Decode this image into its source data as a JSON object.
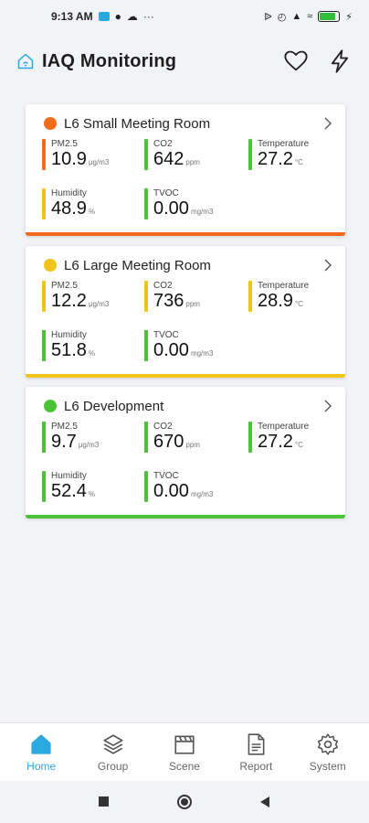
{
  "statusbar": {
    "time": "9:13 AM",
    "dots": "···"
  },
  "header": {
    "title": "IAQ Monitoring"
  },
  "rooms": [
    {
      "name": "L6 Small Meeting Room",
      "status_color": "#f26b1d",
      "metrics": [
        {
          "label": "PM2.5",
          "value": "10.9",
          "unit": "μg/m3",
          "color": "#f26b1d"
        },
        {
          "label": "CO2",
          "value": "642",
          "unit": "ppm",
          "color": "#4cc43a"
        },
        {
          "label": "Temperature",
          "value": "27.2",
          "unit": "°C",
          "color": "#4cc43a"
        },
        {
          "label": "Humidity",
          "value": "48.9",
          "unit": "%",
          "color": "#f0c419"
        },
        {
          "label": "TVOC",
          "value": "0.00",
          "unit": "mg/m3",
          "color": "#4cc43a"
        }
      ]
    },
    {
      "name": "L6 Large Meeting Room",
      "status_color": "#f0c419",
      "metrics": [
        {
          "label": "PM2.5",
          "value": "12.2",
          "unit": "μg/m3",
          "color": "#f0c419"
        },
        {
          "label": "CO2",
          "value": "736",
          "unit": "ppm",
          "color": "#f0c419"
        },
        {
          "label": "Temperature",
          "value": "28.9",
          "unit": "°C",
          "color": "#f0c419"
        },
        {
          "label": "Humidity",
          "value": "51.8",
          "unit": "%",
          "color": "#4cc43a"
        },
        {
          "label": "TVOC",
          "value": "0.00",
          "unit": "mg/m3",
          "color": "#4cc43a"
        }
      ]
    },
    {
      "name": "L6 Development",
      "status_color": "#4cc43a",
      "metrics": [
        {
          "label": "PM2.5",
          "value": "9.7",
          "unit": "μg/m3",
          "color": "#4cc43a"
        },
        {
          "label": "CO2",
          "value": "670",
          "unit": "ppm",
          "color": "#4cc43a"
        },
        {
          "label": "Temperature",
          "value": "27.2",
          "unit": "°C",
          "color": "#4cc43a"
        },
        {
          "label": "Humidity",
          "value": "52.4",
          "unit": "%",
          "color": "#4cc43a"
        },
        {
          "label": "TVOC",
          "value": "0.00",
          "unit": "mg/m3",
          "color": "#4cc43a"
        }
      ]
    }
  ],
  "nav": [
    {
      "label": "Home",
      "icon": "home-icon",
      "active": true
    },
    {
      "label": "Group",
      "icon": "layers-icon",
      "active": false
    },
    {
      "label": "Scene",
      "icon": "clapperboard-icon",
      "active": false
    },
    {
      "label": "Report",
      "icon": "document-icon",
      "active": false
    },
    {
      "label": "System",
      "icon": "gear-icon",
      "active": false
    }
  ],
  "colors": {
    "accent": "#2aa8e0",
    "good": "#4cc43a",
    "moderate": "#f0c419",
    "poor": "#f26b1d"
  }
}
